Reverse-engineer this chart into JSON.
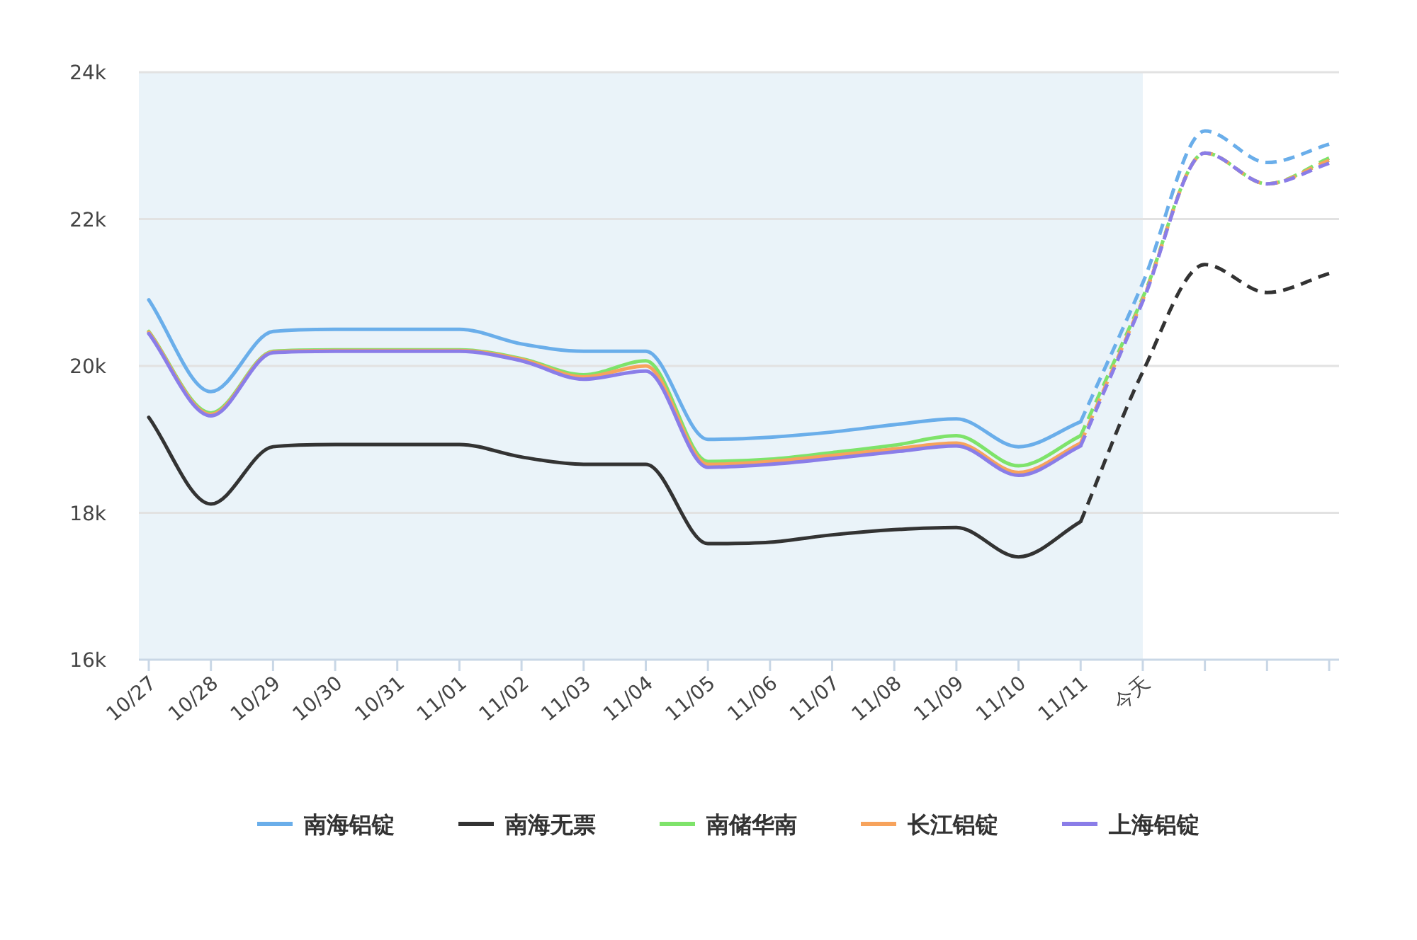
{
  "chart_data": {
    "type": "line",
    "categories": [
      "10/27",
      "10/28",
      "10/29",
      "10/30",
      "10/31",
      "11/01",
      "11/02",
      "11/03",
      "11/04",
      "11/05",
      "11/06",
      "11/07",
      "11/08",
      "11/09",
      "11/10",
      "11/11",
      "今天",
      null,
      null,
      null
    ],
    "series": [
      {
        "name": "南海铝锭",
        "color": "#6aaeea",
        "line_style": "solid",
        "values": [
          20900,
          19650,
          20470,
          20500,
          20500,
          20500,
          20300,
          20200,
          20200,
          19000,
          19030,
          19100,
          19200,
          19280,
          18900,
          19240,
          null,
          null,
          null,
          null
        ]
      },
      {
        "name": "南海无票",
        "color": "#333333",
        "line_style": "solid",
        "values": [
          19300,
          18120,
          18900,
          18930,
          18930,
          18930,
          18760,
          18660,
          18660,
          17580,
          17600,
          17700,
          17770,
          17800,
          17400,
          17880,
          null,
          null,
          null,
          null
        ]
      },
      {
        "name": "南储华南",
        "color": "#7ee36a",
        "line_style": "solid",
        "values": [
          20470,
          19360,
          20200,
          20220,
          20220,
          20220,
          20100,
          19880,
          20070,
          18700,
          18730,
          18820,
          18920,
          19050,
          18640,
          19050,
          null,
          null,
          null,
          null
        ]
      },
      {
        "name": "长江铝锭",
        "color": "#f7a35c",
        "line_style": "solid",
        "values": [
          20460,
          19340,
          20190,
          20210,
          20210,
          20210,
          20090,
          19850,
          20000,
          18660,
          18700,
          18780,
          18870,
          18950,
          18550,
          18950,
          null,
          null,
          null,
          null
        ]
      },
      {
        "name": "上海铝锭",
        "color": "#8a7de8",
        "line_style": "solid",
        "values": [
          20440,
          19320,
          20180,
          20200,
          20200,
          20200,
          20070,
          19820,
          19930,
          18620,
          18660,
          18740,
          18830,
          18910,
          18510,
          18910,
          null,
          null,
          null,
          null
        ]
      },
      {
        "color": "#6aaeea",
        "line_style": "dashed",
        "values": [
          null,
          null,
          null,
          null,
          null,
          null,
          null,
          null,
          null,
          null,
          null,
          null,
          null,
          null,
          null,
          19240,
          21130,
          23200,
          22770,
          23020
        ]
      },
      {
        "color": "#333333",
        "line_style": "dashed",
        "values": [
          null,
          null,
          null,
          null,
          null,
          null,
          null,
          null,
          null,
          null,
          null,
          null,
          null,
          null,
          null,
          17880,
          19920,
          21380,
          21000,
          21260
        ]
      },
      {
        "color": "#7ee36a",
        "line_style": "dashed",
        "values": [
          null,
          null,
          null,
          null,
          null,
          null,
          null,
          null,
          null,
          null,
          null,
          null,
          null,
          null,
          null,
          19050,
          20930,
          22900,
          22480,
          22830
        ]
      },
      {
        "color": "#f7a35c",
        "line_style": "dashed",
        "values": [
          null,
          null,
          null,
          null,
          null,
          null,
          null,
          null,
          null,
          null,
          null,
          null,
          null,
          null,
          null,
          18950,
          20900,
          22900,
          22480,
          22800
        ]
      },
      {
        "color": "#8a7de8",
        "line_style": "dashed",
        "values": [
          null,
          null,
          null,
          null,
          null,
          null,
          null,
          null,
          null,
          null,
          null,
          null,
          null,
          null,
          null,
          18910,
          20880,
          22900,
          22480,
          22760
        ]
      }
    ],
    "ylim": [
      16000,
      24000
    ],
    "yticks": [
      {
        "value": 16000,
        "label": "16k"
      },
      {
        "value": 18000,
        "label": "18k"
      },
      {
        "value": 20000,
        "label": "20k"
      },
      {
        "value": 22000,
        "label": "22k"
      },
      {
        "value": 24000,
        "label": "24k"
      }
    ],
    "grid": "y",
    "legend": "bottom",
    "marker": "none",
    "bands": [
      {
        "axis": "x",
        "from": "10/27",
        "to": "今天",
        "color": "#eaf3f9"
      }
    ]
  }
}
